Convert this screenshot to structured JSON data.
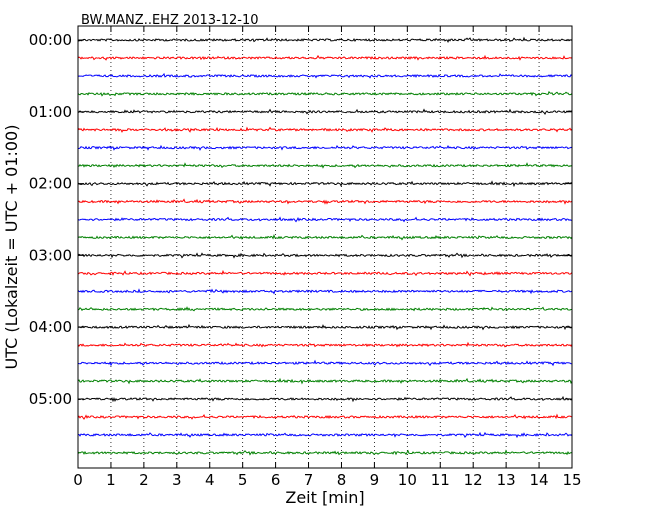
{
  "chart_data": {
    "type": "line",
    "title": "BW.MANZ..EHZ 2013-12-10",
    "xlabel": "Zeit  [min]",
    "ylabel": "UTC (Lokalzeit = UTC + 01:00)",
    "xlim": [
      0,
      15
    ],
    "x_ticks": [
      "0",
      "1",
      "2",
      "3",
      "4",
      "5",
      "6",
      "7",
      "8",
      "9",
      "10",
      "11",
      "12",
      "13",
      "14",
      "15"
    ],
    "y_ticks": [
      "00:00",
      "01:00",
      "02:00",
      "03:00",
      "04:00",
      "05:00"
    ],
    "grid": "vertical dotted",
    "rows_per_hour": 4,
    "row_count": 24,
    "row_colors": [
      "#000000",
      "#ff0000",
      "#0000ff",
      "#008000"
    ]
  }
}
